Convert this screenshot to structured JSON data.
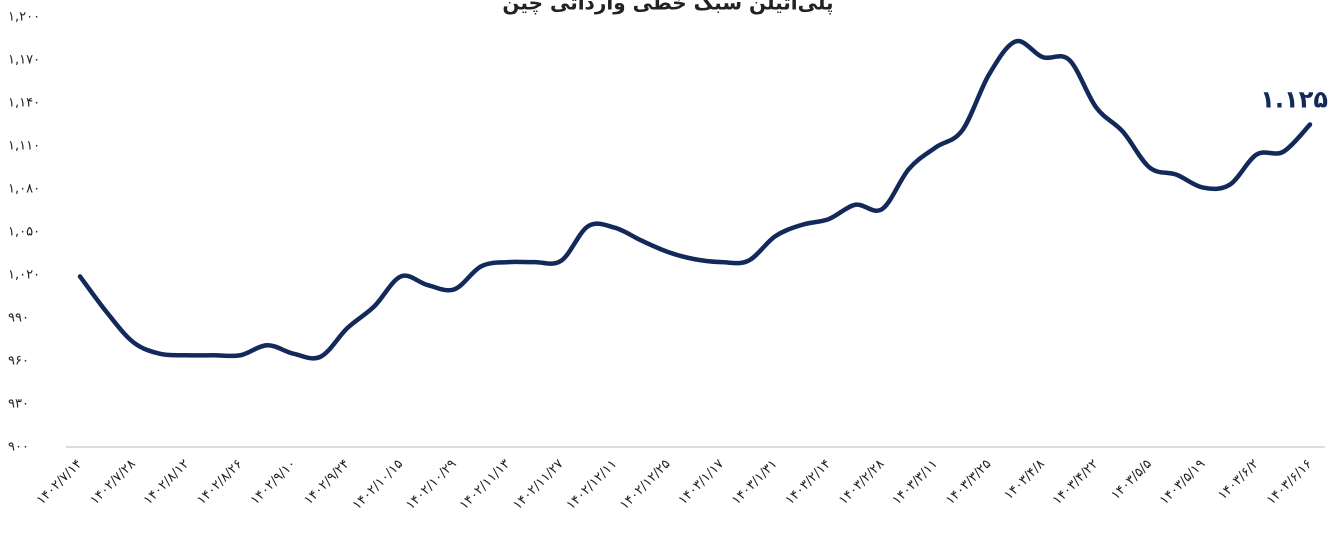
{
  "chart_data": {
    "type": "line",
    "title": "پلی‌اتیلن سبک خطی وارداتی چین",
    "categories": [
      "۱۴۰۲/۷/۱۴",
      null,
      "۱۴۰۲/۷/۲۸",
      null,
      "۱۴۰۲/۸/۱۲",
      null,
      "۱۴۰۲/۸/۲۶",
      null,
      "۱۴۰۲/۹/۱۰",
      null,
      "۱۴۰۲/۹/۲۴",
      null,
      "۱۴۰۲/۱۰/۱۵",
      null,
      "۱۴۰۲/۱۰/۲۹",
      null,
      "۱۴۰۲/۱۱/۱۳",
      null,
      "۱۴۰۲/۱۱/۲۷",
      null,
      "۱۴۰۲/۱۲/۱۱",
      null,
      "۱۴۰۲/۱۲/۲۵",
      null,
      "۱۴۰۳/۱/۱۷",
      null,
      "۱۴۰۳/۱/۳۱",
      null,
      "۱۴۰۳/۲/۱۴",
      null,
      "۱۴۰۳/۲/۲۸",
      null,
      "۱۴۰۳/۳/۱۱",
      null,
      "۱۴۰۳/۳/۲۵",
      null,
      "۱۴۰۳/۴/۸",
      null,
      "۱۴۰۳/۴/۲۲",
      null,
      "۱۴۰۳/۵/۵",
      null,
      "۱۴۰۳/۵/۱۹",
      null,
      "۱۴۰۳/۶/۲",
      null,
      "۱۴۰۳/۶/۱۶"
    ],
    "series": [
      {
        "color": "#12295a",
        "values": [
          1019,
          994,
          973,
          965,
          964,
          964,
          964,
          971,
          965,
          963,
          983,
          998,
          1019,
          1013,
          1010,
          1026,
          1029,
          1029,
          1030,
          1054,
          1053,
          1044,
          1036,
          1031,
          1029,
          1030,
          1047,
          1055,
          1059,
          1069,
          1066,
          1094,
          1109,
          1121,
          1160,
          1183,
          1172,
          1170,
          1137,
          1120,
          1095,
          1090,
          1081,
          1083,
          1104,
          1106,
          1125
        ],
        "value_labels": {
          "46": "۱.۱۲۵"
        }
      }
    ],
    "ylim": [
      900,
      1200
    ],
    "yticks": [
      {
        "value": 900,
        "label": "۹۰۰"
      },
      {
        "value": 930,
        "label": "۹۳۰"
      },
      {
        "value": 960,
        "label": "۹۶۰"
      },
      {
        "value": 990,
        "label": "۹۹۰"
      },
      {
        "value": 1020,
        "label": "۱,۰۲۰"
      },
      {
        "value": 1050,
        "label": "۱,۰۵۰"
      },
      {
        "value": 1080,
        "label": "۱,۰۸۰"
      },
      {
        "value": 1110,
        "label": "۱,۱۱۰"
      },
      {
        "value": 1140,
        "label": "۱,۱۴۰"
      },
      {
        "value": 1170,
        "label": "۱,۱۷۰"
      },
      {
        "value": 1200,
        "label": "۱,۲۰۰"
      }
    ],
    "grid": false
  }
}
